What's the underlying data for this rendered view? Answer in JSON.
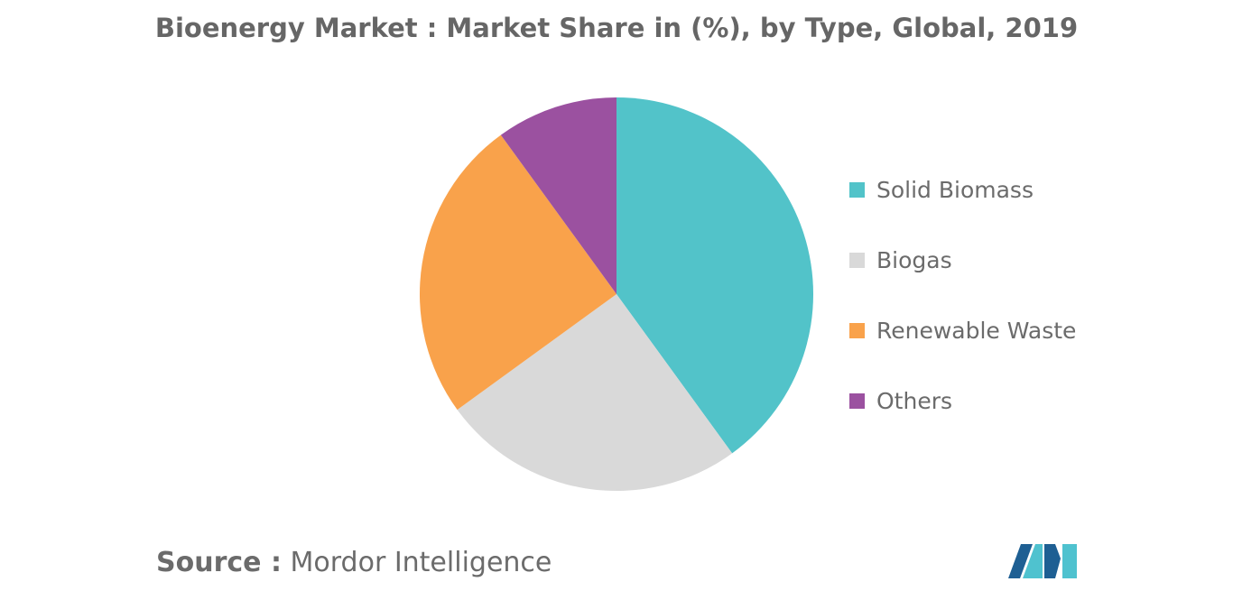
{
  "chart_data": {
    "type": "pie",
    "title": "Bioenergy Market : Market Share in (%), by Type, Global, 2019",
    "categories": [
      "Solid Biomass",
      "Biogas",
      "Renewable Waste",
      "Others"
    ],
    "values": [
      40,
      25,
      25,
      10
    ],
    "colors": [
      "#52c3c9",
      "#d9d9d9",
      "#f9a24b",
      "#9b51a0"
    ],
    "legend_position": "right",
    "start_angle_deg": 0,
    "direction": "clockwise"
  },
  "source": {
    "label": "Source :",
    "text": "Mordor Intelligence"
  },
  "logo": {
    "icon": "mordor-intelligence-logo-icon",
    "colors": [
      "#1e5f93",
      "#4fc2cf"
    ]
  }
}
